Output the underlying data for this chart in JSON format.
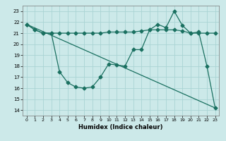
{
  "xlabel": "Humidex (Indice chaleur)",
  "xlim": [
    -0.5,
    23.5
  ],
  "ylim": [
    13.5,
    23.5
  ],
  "yticks": [
    14,
    15,
    16,
    17,
    18,
    19,
    20,
    21,
    22,
    23
  ],
  "xticks": [
    0,
    1,
    2,
    3,
    4,
    5,
    6,
    7,
    8,
    9,
    10,
    11,
    12,
    13,
    14,
    15,
    16,
    17,
    18,
    19,
    20,
    21,
    22,
    23
  ],
  "bg_color": "#cce9e9",
  "grid_color": "#aad4d4",
  "line_color": "#1a7060",
  "line1_x": [
    0,
    1,
    2,
    3,
    4,
    5,
    6,
    7,
    8,
    9,
    10,
    11,
    12,
    13,
    14,
    15,
    16,
    17,
    18,
    19,
    20,
    21,
    22,
    23
  ],
  "line1_y": [
    21.8,
    21.3,
    21.0,
    21.0,
    21.0,
    21.0,
    21.0,
    21.0,
    21.0,
    21.0,
    21.1,
    21.1,
    21.1,
    21.1,
    21.2,
    21.3,
    21.3,
    21.3,
    21.3,
    21.2,
    21.0,
    21.0,
    21.0,
    21.0
  ],
  "line2_x": [
    0,
    1,
    2,
    3,
    4,
    5,
    6,
    7,
    8,
    9,
    10,
    11,
    12,
    13,
    14,
    15,
    16,
    17,
    18,
    19,
    20,
    21,
    22,
    23
  ],
  "line2_y": [
    21.8,
    21.3,
    21.0,
    21.0,
    17.5,
    16.5,
    16.1,
    16.0,
    16.1,
    17.0,
    18.2,
    18.1,
    18.0,
    19.5,
    19.5,
    21.3,
    21.8,
    21.5,
    23.0,
    21.7,
    21.0,
    21.1,
    18.0,
    14.2
  ],
  "line3_x": [
    0,
    23
  ],
  "line3_y": [
    21.8,
    14.2
  ]
}
